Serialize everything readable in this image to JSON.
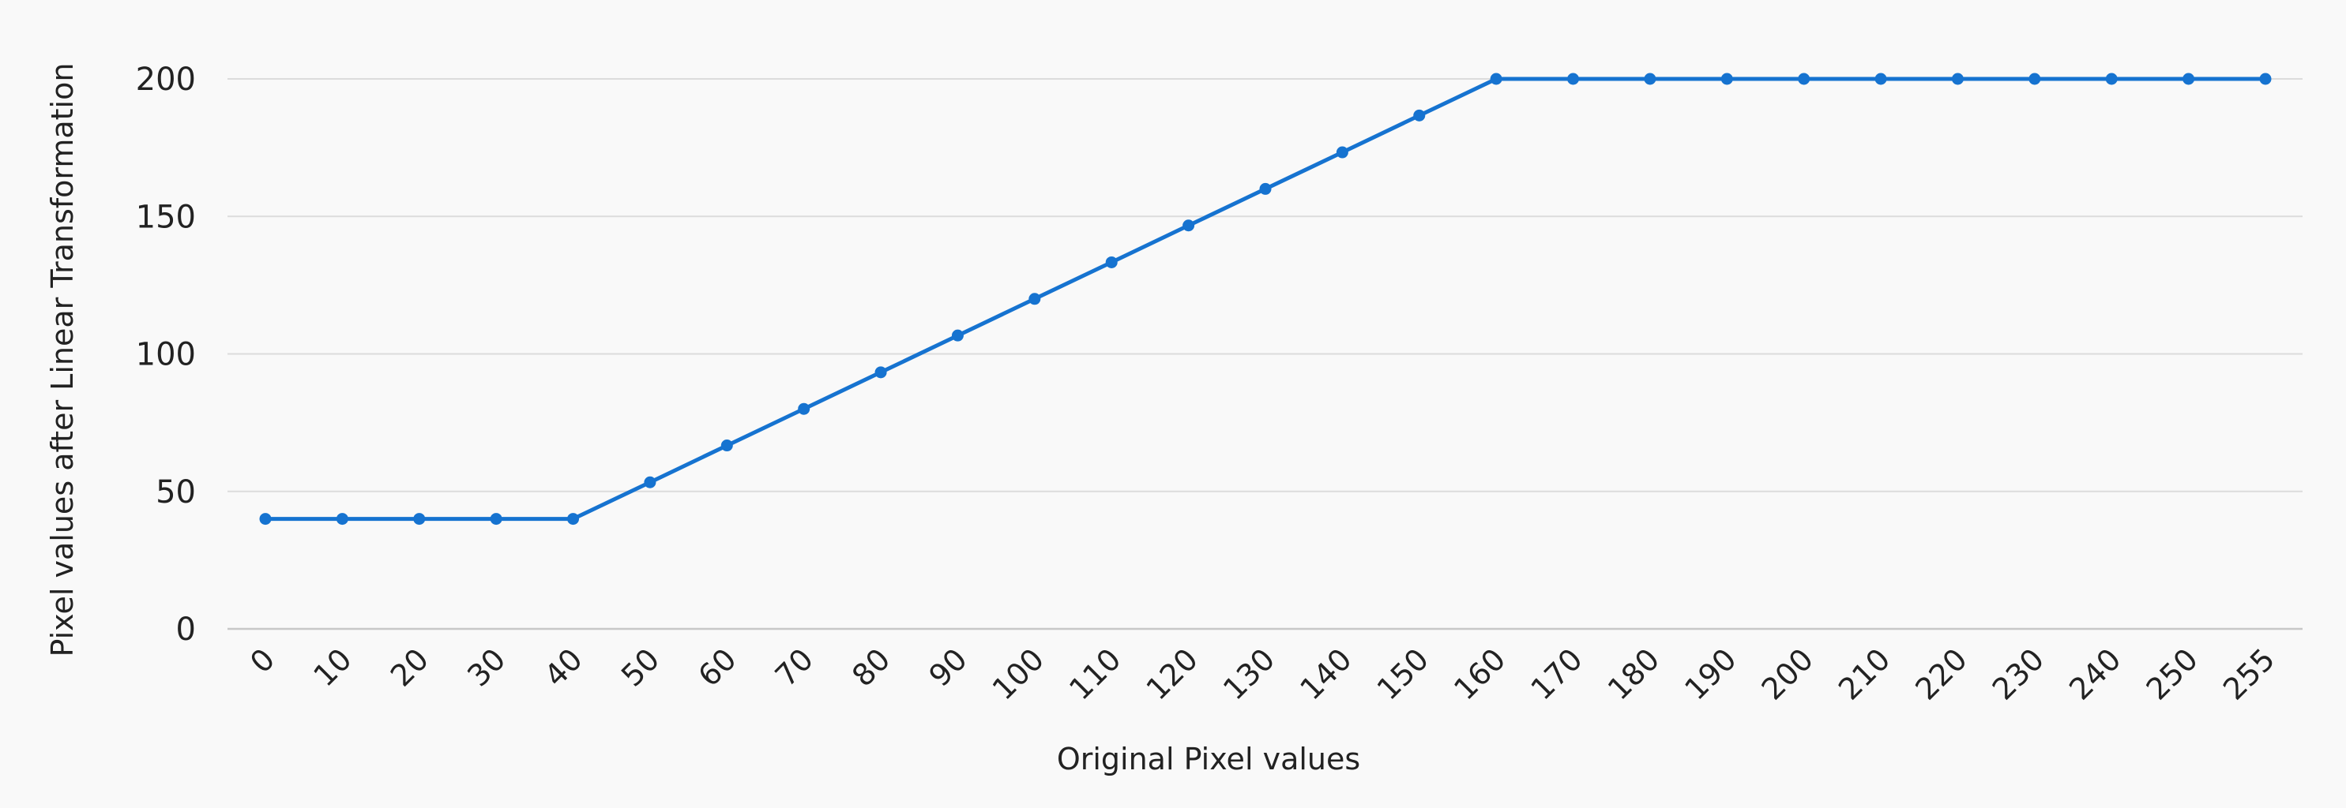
{
  "chart_data": {
    "type": "line",
    "title": "",
    "xlabel": "Original Pixel values",
    "ylabel": "Pixel values after Linear Transformation",
    "categories": [
      "0",
      "10",
      "20",
      "30",
      "40",
      "50",
      "60",
      "70",
      "80",
      "90",
      "100",
      "110",
      "120",
      "130",
      "140",
      "150",
      "160",
      "170",
      "180",
      "190",
      "200",
      "210",
      "220",
      "230",
      "240",
      "250",
      "255"
    ],
    "series": [
      {
        "values": [
          40,
          40,
          40,
          40,
          40,
          53.3,
          66.7,
          80,
          93.3,
          106.7,
          120,
          133.3,
          146.7,
          160,
          173.3,
          186.7,
          200,
          200,
          200,
          200,
          200,
          200,
          200,
          200,
          200,
          200,
          200
        ]
      }
    ],
    "yticks": [
      "0",
      "50",
      "100",
      "150",
      "200"
    ],
    "ylim": [
      0,
      200
    ],
    "grid": "horizontal",
    "legend": "none",
    "colors": {
      "series": "#1673d0",
      "background": "#f9f9f9"
    }
  }
}
